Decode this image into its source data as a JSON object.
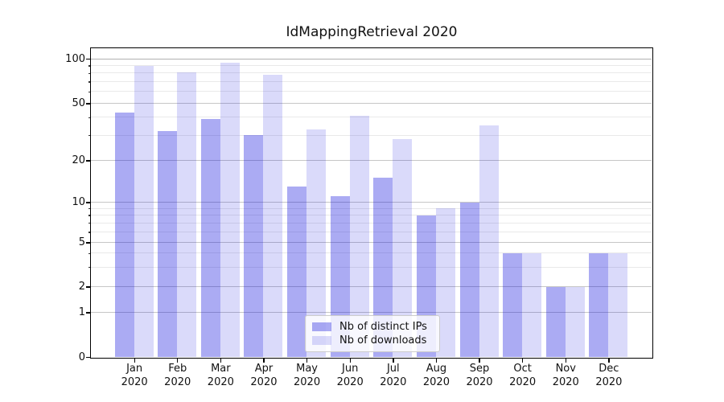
{
  "title": "IdMappingRetrieval 2020",
  "x_axis": {
    "months": [
      "Jan",
      "Feb",
      "Mar",
      "Apr",
      "May",
      "Jun",
      "Jul",
      "Aug",
      "Sep",
      "Oct",
      "Nov",
      "Dec"
    ],
    "year": "2020"
  },
  "y_axis": {
    "tick_labels": [
      "0",
      "1",
      "2",
      "5",
      "10",
      "20",
      "50",
      "100"
    ]
  },
  "legend": {
    "items": [
      "Nb of distinct IPs",
      "Nb of downloads"
    ]
  },
  "colors": {
    "distinct_ips": "rgba(10,10,220,0.34)",
    "downloads": "rgba(10,10,220,0.15)",
    "grid_major": "#c6c6c6",
    "grid_minor": "#e9e9e9",
    "grid_top": "#b0b0b0",
    "axis": "#000000"
  },
  "chart_data": {
    "type": "bar",
    "title": "IdMappingRetrieval 2020",
    "categories": [
      "Jan 2020",
      "Feb 2020",
      "Mar 2020",
      "Apr 2020",
      "May 2020",
      "Jun 2020",
      "Jul 2020",
      "Aug 2020",
      "Sep 2020",
      "Oct 2020",
      "Nov 2020",
      "Dec 2020"
    ],
    "series": [
      {
        "name": "Nb of distinct IPs",
        "values": [
          43,
          32,
          39,
          30,
          13,
          11,
          15,
          8,
          10,
          4,
          2,
          4
        ]
      },
      {
        "name": "Nb of downloads",
        "values": [
          89,
          81,
          94,
          78,
          33,
          41,
          28,
          9,
          35,
          4,
          2,
          4
        ]
      }
    ],
    "yscale": "symlog",
    "yticks": [
      0,
      1,
      2,
      5,
      10,
      20,
      50,
      100
    ],
    "yminorticks": [
      3,
      4,
      6,
      7,
      8,
      9,
      30,
      40,
      60,
      70,
      80,
      90
    ],
    "ylim": [
      0,
      110
    ],
    "xlabel": "",
    "ylabel": "",
    "grid": true,
    "legend_position": "lower-center"
  }
}
